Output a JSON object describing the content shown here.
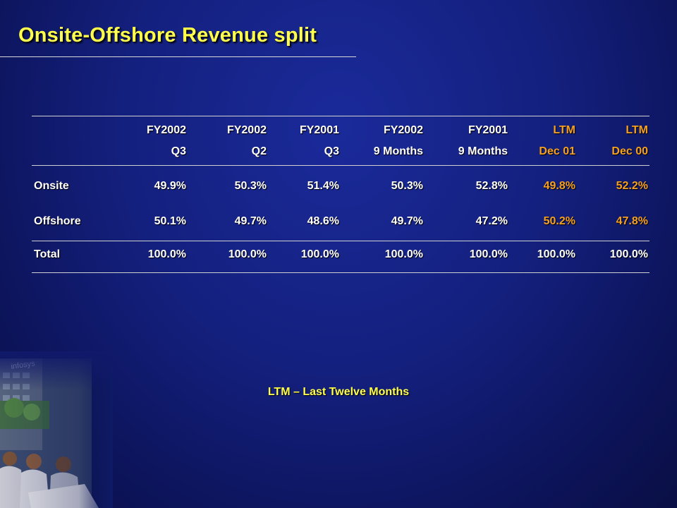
{
  "title": "Onsite-Offshore Revenue split",
  "table": {
    "headers": [
      {
        "line1": "FY2002",
        "line2": "Q3",
        "highlight": false
      },
      {
        "line1": "FY2002",
        "line2": "Q2",
        "highlight": false
      },
      {
        "line1": "FY2001",
        "line2": "Q3",
        "highlight": false
      },
      {
        "line1": "FY2002",
        "line2": "9 Months",
        "highlight": false
      },
      {
        "line1": "FY2001",
        "line2": "9 Months",
        "highlight": false
      },
      {
        "line1": "LTM",
        "line2": "Dec 01",
        "highlight": true
      },
      {
        "line1": "LTM",
        "line2": "Dec 00",
        "highlight": true
      }
    ],
    "rows": [
      {
        "label": "Onsite",
        "values": [
          "49.9%",
          "50.3%",
          "51.4%",
          "50.3%",
          "52.8%",
          "49.8%",
          "52.2%"
        ]
      },
      {
        "label": "Offshore",
        "values": [
          "50.1%",
          "49.7%",
          "48.6%",
          "49.7%",
          "47.2%",
          "50.2%",
          "47.8%"
        ]
      },
      {
        "label": "Total",
        "values": [
          "100.0%",
          "100.0%",
          "100.0%",
          "100.0%",
          "100.0%",
          "100.0%",
          "100.0%"
        ]
      }
    ]
  },
  "footnote": "LTM – Last Twelve Months",
  "image": {
    "sign_text": "infosys"
  },
  "colors": {
    "title": "#ffff4c",
    "ltm": "#f5a020",
    "text": "#ffffff",
    "background": "#14207e"
  }
}
